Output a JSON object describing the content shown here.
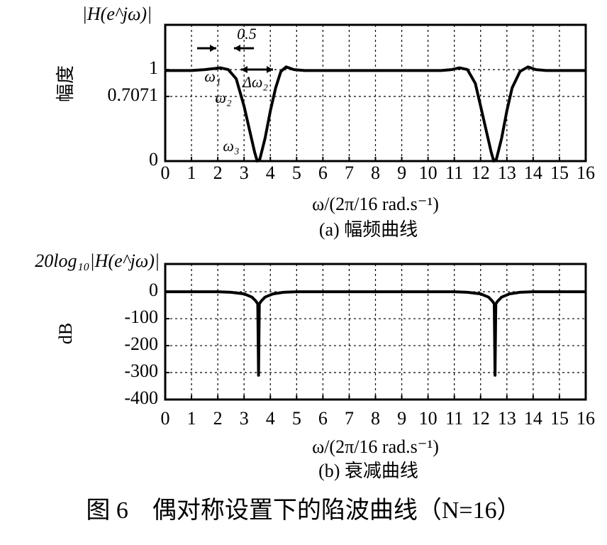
{
  "chart_data": [
    {
      "type": "line",
      "title": "(a) 幅频曲线",
      "ylabel": "幅度",
      "yheader": "|H(e^jω)|",
      "xlabel": "ω/(2π/16 rad.s⁻¹)",
      "xlim": [
        0,
        16
      ],
      "xticks": [
        0,
        1,
        2,
        3,
        4,
        5,
        6,
        7,
        8,
        9,
        10,
        11,
        12,
        13,
        14,
        15,
        16
      ],
      "ylim": [
        0,
        1.49
      ],
      "yticks": [
        0,
        0.7071,
        1
      ],
      "grid": true,
      "color": "#000000",
      "x": [
        0,
        0.5,
        1,
        1.5,
        1.8,
        2.1,
        2.4,
        2.7,
        3.0,
        3.2,
        3.4,
        3.5,
        3.6,
        3.8,
        4.0,
        4.2,
        4.4,
        4.6,
        4.9,
        5.3,
        6,
        7,
        8,
        9,
        10,
        10.5,
        10.9,
        11.2,
        11.5,
        11.8,
        12.0,
        12.2,
        12.4,
        12.5,
        12.6,
        12.8,
        13.0,
        13.2,
        13.5,
        13.8,
        14.1,
        14.5,
        15,
        15.5,
        16
      ],
      "values": [
        0.99,
        0.99,
        0.99,
        1.0,
        1.01,
        1.02,
        1.0,
        0.9,
        0.6,
        0.35,
        0.1,
        0.0,
        0.02,
        0.25,
        0.55,
        0.8,
        0.98,
        1.03,
        1.0,
        0.99,
        0.99,
        0.99,
        0.99,
        0.99,
        0.99,
        0.99,
        1.0,
        1.02,
        1.0,
        0.85,
        0.6,
        0.35,
        0.1,
        0.0,
        0.02,
        0.25,
        0.55,
        0.8,
        0.98,
        1.03,
        1.0,
        0.99,
        0.99,
        0.99,
        0.99
      ],
      "annotations": [
        "0.5",
        "ω₁",
        "ω₂",
        "Δω₂",
        "ω₃"
      ]
    },
    {
      "type": "line",
      "title": "(b) 衰减曲线",
      "ylabel": "dB",
      "yheader": "20log₁₀|H(e^jω)|",
      "xlabel": "ω/(2π/16 rad.s⁻¹)",
      "xlim": [
        0,
        16
      ],
      "xticks": [
        0,
        1,
        2,
        3,
        4,
        5,
        6,
        7,
        8,
        9,
        10,
        11,
        12,
        13,
        14,
        15,
        16
      ],
      "ylim": [
        -400,
        103
      ],
      "yticks": [
        0,
        -100,
        -200,
        -300,
        -400
      ],
      "grid": true,
      "color": "#000000",
      "x": [
        0,
        1,
        2,
        2.5,
        3.0,
        3.3,
        3.45,
        3.52,
        3.55,
        3.58,
        3.65,
        3.8,
        4.1,
        4.5,
        5,
        6,
        8,
        10,
        11,
        11.5,
        12.0,
        12.3,
        12.45,
        12.52,
        12.55,
        12.58,
        12.65,
        12.8,
        13.1,
        13.5,
        14,
        15,
        16
      ],
      "values": [
        0,
        0,
        0,
        -2,
        -8,
        -20,
        -35,
        -45,
        -310,
        -45,
        -35,
        -20,
        -8,
        -2,
        0,
        0,
        0,
        0,
        0,
        -2,
        -8,
        -20,
        -35,
        -45,
        -310,
        -45,
        -35,
        -20,
        -8,
        -2,
        0,
        0,
        0
      ]
    },
    {
      "type": "caption",
      "title": "图 6　偶对称设置下的陷波曲线（N=16）"
    }
  ]
}
